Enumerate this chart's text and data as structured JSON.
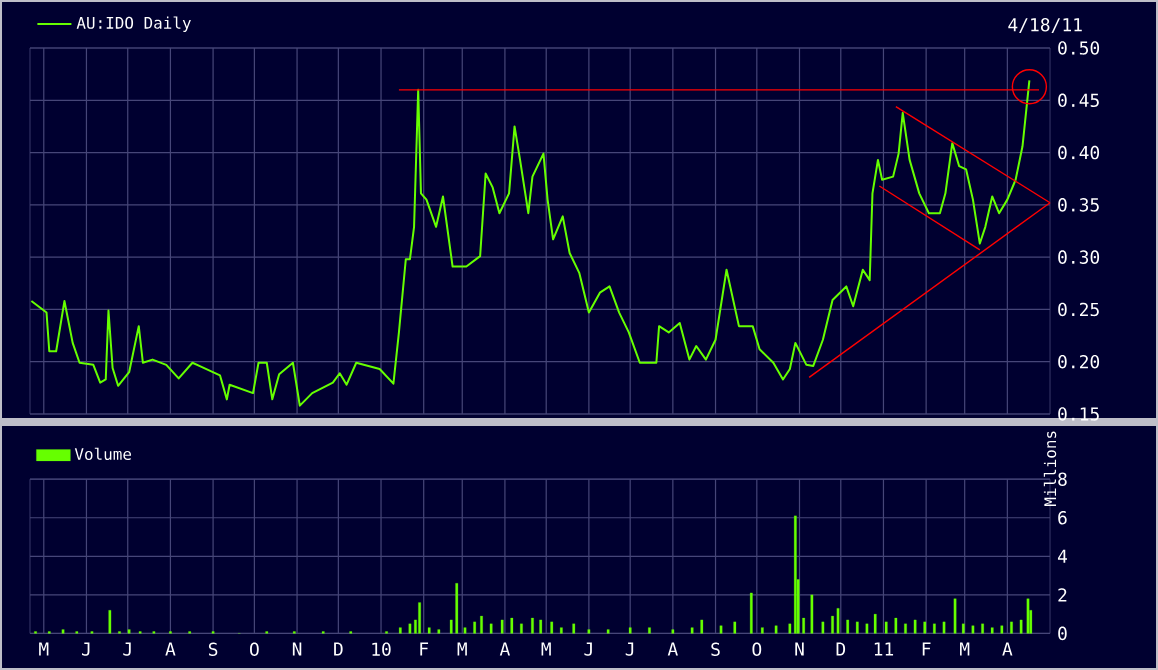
{
  "chart_data": [
    {
      "type": "line",
      "annotations": [
        "4/18/11"
      ],
      "legend": "top left",
      "grid": true,
      "tick_labels": "y",
      "line_style": "solid",
      "xlim": [
        "2009-04-21",
        "2011-05-02"
      ],
      "ylim": [
        0.15,
        0.5
      ],
      "xticks": [
        {
          "value": "2009-05-01",
          "label": null
        },
        {
          "value": "2009-06-01",
          "label": null
        },
        {
          "value": "2009-07-01",
          "label": null
        },
        {
          "value": "2009-08-01",
          "label": null
        },
        {
          "value": "2009-09-01",
          "label": null
        },
        {
          "value": "2009-10-01",
          "label": null
        },
        {
          "value": "2009-11-01",
          "label": null
        },
        {
          "value": "2009-12-01",
          "label": null
        },
        {
          "value": "2010-01-01",
          "label": null
        },
        {
          "value": "2010-02-01",
          "label": null
        },
        {
          "value": "2010-03-01",
          "label": null
        },
        {
          "value": "2010-04-01",
          "label": null
        },
        {
          "value": "2010-05-01",
          "label": null
        },
        {
          "value": "2010-06-01",
          "label": null
        },
        {
          "value": "2010-07-01",
          "label": null
        },
        {
          "value": "2010-08-01",
          "label": null
        },
        {
          "value": "2010-09-01",
          "label": null
        },
        {
          "value": "2010-10-01",
          "label": null
        },
        {
          "value": "2010-11-01",
          "label": null
        },
        {
          "value": "2010-12-01",
          "label": null
        },
        {
          "value": "2011-01-01",
          "label": null
        },
        {
          "value": "2011-02-01",
          "label": null
        },
        {
          "value": "2011-03-01",
          "label": null
        },
        {
          "value": "2011-04-01",
          "label": null
        }
      ],
      "yticks": [
        {
          "value": 0.15,
          "label": "0.15"
        },
        {
          "value": 0.2,
          "label": "0.20"
        },
        {
          "value": 0.25,
          "label": "0.25"
        },
        {
          "value": 0.3,
          "label": "0.30"
        },
        {
          "value": 0.35,
          "label": "0.35"
        },
        {
          "value": 0.4,
          "label": "0.40"
        },
        {
          "value": 0.45,
          "label": "0.45"
        },
        {
          "value": 0.5,
          "label": "0.50"
        }
      ],
      "series": [
        {
          "name": "AU:IDO Daily",
          "type": "line",
          "color": "#66ff00",
          "x": [
            "2009-04-22",
            "2009-05-03",
            "2009-05-05",
            "2009-05-10",
            "2009-05-16",
            "2009-05-22",
            "2009-05-27",
            "2009-06-06",
            "2009-06-11",
            "2009-06-15",
            "2009-06-17",
            "2009-06-20",
            "2009-06-24",
            "2009-07-02",
            "2009-07-09",
            "2009-07-12",
            "2009-07-19",
            "2009-07-29",
            "2009-08-07",
            "2009-08-17",
            "2009-08-22",
            "2009-09-06",
            "2009-09-11",
            "2009-09-13",
            "2009-09-30",
            "2009-10-04",
            "2009-10-10",
            "2009-10-14",
            "2009-10-19",
            "2009-10-29",
            "2009-11-03",
            "2009-11-12",
            "2009-11-27",
            "2009-12-02",
            "2009-12-07",
            "2009-12-14",
            "2009-12-31",
            "2010-01-10",
            "2010-01-14",
            "2010-01-19",
            "2010-01-22",
            "2010-01-25",
            "2010-01-28",
            "2010-01-30",
            "2010-02-03",
            "2010-02-10",
            "2010-02-15",
            "2010-02-22",
            "2010-03-04",
            "2010-03-14",
            "2010-03-18",
            "2010-03-23",
            "2010-03-28",
            "2010-04-04",
            "2010-04-08",
            "2010-04-12",
            "2010-04-18",
            "2010-04-21",
            "2010-04-29",
            "2010-05-02",
            "2010-05-06",
            "2010-05-13",
            "2010-05-18",
            "2010-05-25",
            "2010-06-01",
            "2010-06-09",
            "2010-06-16",
            "2010-06-23",
            "2010-06-30",
            "2010-07-08",
            "2010-07-20",
            "2010-07-22",
            "2010-07-29",
            "2010-08-06",
            "2010-08-13",
            "2010-08-18",
            "2010-08-25",
            "2010-09-01",
            "2010-09-09",
            "2010-09-18",
            "2010-09-28",
            "2010-10-03",
            "2010-10-13",
            "2010-10-20",
            "2010-10-25",
            "2010-10-29",
            "2010-11-06",
            "2010-11-11",
            "2010-11-18",
            "2010-11-25",
            "2010-12-05",
            "2010-12-10",
            "2010-12-17",
            "2010-12-22",
            "2010-12-24",
            "2010-12-28",
            "2010-12-31",
            "2011-01-08",
            "2011-01-12",
            "2011-01-15",
            "2011-01-20",
            "2011-01-27",
            "2011-02-03",
            "2011-02-11",
            "2011-02-15",
            "2011-02-20",
            "2011-02-25",
            "2011-03-02",
            "2011-03-07",
            "2011-03-12",
            "2011-03-16",
            "2011-03-21",
            "2011-03-26",
            "2011-04-01",
            "2011-04-07",
            "2011-04-12",
            "2011-04-17"
          ],
          "values": [
            0.258,
            0.247,
            0.21,
            0.21,
            0.258,
            0.218,
            0.199,
            0.197,
            0.18,
            0.183,
            0.249,
            0.194,
            0.177,
            0.19,
            0.234,
            0.199,
            0.202,
            0.197,
            0.184,
            0.199,
            0.196,
            0.187,
            0.164,
            0.178,
            0.17,
            0.199,
            0.199,
            0.164,
            0.188,
            0.199,
            0.158,
            0.17,
            0.18,
            0.189,
            0.178,
            0.199,
            0.193,
            0.179,
            0.228,
            0.298,
            0.298,
            0.329,
            0.46,
            0.361,
            0.355,
            0.329,
            0.358,
            0.291,
            0.291,
            0.301,
            0.38,
            0.367,
            0.342,
            0.361,
            0.425,
            0.393,
            0.342,
            0.377,
            0.399,
            0.355,
            0.317,
            0.339,
            0.304,
            0.285,
            0.247,
            0.266,
            0.272,
            0.247,
            0.228,
            0.199,
            0.199,
            0.234,
            0.228,
            0.237,
            0.202,
            0.215,
            0.202,
            0.221,
            0.288,
            0.234,
            0.234,
            0.212,
            0.199,
            0.183,
            0.193,
            0.218,
            0.197,
            0.196,
            0.221,
            0.259,
            0.272,
            0.253,
            0.288,
            0.278,
            0.361,
            0.393,
            0.374,
            0.377,
            0.399,
            0.438,
            0.393,
            0.361,
            0.342,
            0.342,
            0.361,
            0.409,
            0.387,
            0.384,
            0.355,
            0.313,
            0.329,
            0.358,
            0.342,
            0.355,
            0.374,
            0.406,
            0.469
          ]
        },
        {
          "type": "line",
          "color": "#ff0000",
          "x": [
            "2010-01-14",
            "2011-04-24"
          ],
          "values": [
            0.46,
            0.46
          ]
        },
        {
          "type": "line",
          "color": "#ff0000",
          "x": [
            "2011-01-10",
            "2011-05-02"
          ],
          "values": [
            0.444,
            0.352
          ]
        },
        {
          "type": "line",
          "color": "#ff0000",
          "x": [
            "2010-12-29",
            "2011-03-12"
          ],
          "values": [
            0.368,
            0.307
          ]
        },
        {
          "type": "line",
          "color": "#ff0000",
          "x": [
            "2010-11-08",
            "2011-05-02"
          ],
          "values": [
            0.185,
            0.352
          ]
        },
        {
          "type": "scatter",
          "marker": "circle",
          "color": "#ff0000",
          "x": [
            "2011-04-17"
          ],
          "values": [
            0.463
          ]
        }
      ]
    },
    {
      "type": "bar",
      "legend": "top left",
      "grid": true,
      "ylabel": "Millions",
      "xlim": [
        "2009-04-21",
        "2011-05-02"
      ],
      "ylim": [
        0,
        8
      ],
      "xticks": [
        {
          "value": "2009-05-01",
          "label": "M"
        },
        {
          "value": "2009-06-01",
          "label": "J"
        },
        {
          "value": "2009-07-01",
          "label": "J"
        },
        {
          "value": "2009-08-01",
          "label": "A"
        },
        {
          "value": "2009-09-01",
          "label": "S"
        },
        {
          "value": "2009-10-01",
          "label": "O"
        },
        {
          "value": "2009-11-01",
          "label": "N"
        },
        {
          "value": "2009-12-01",
          "label": "D"
        },
        {
          "value": "2010-01-01",
          "label": "10"
        },
        {
          "value": "2010-02-01",
          "label": "F"
        },
        {
          "value": "2010-03-01",
          "label": "M"
        },
        {
          "value": "2010-04-01",
          "label": "A"
        },
        {
          "value": "2010-05-01",
          "label": "M"
        },
        {
          "value": "2010-06-01",
          "label": "J"
        },
        {
          "value": "2010-07-01",
          "label": "J"
        },
        {
          "value": "2010-08-01",
          "label": "A"
        },
        {
          "value": "2010-09-01",
          "label": "S"
        },
        {
          "value": "2010-10-01",
          "label": "O"
        },
        {
          "value": "2010-11-01",
          "label": "N"
        },
        {
          "value": "2010-12-01",
          "label": "D"
        },
        {
          "value": "2011-01-01",
          "label": "11"
        },
        {
          "value": "2011-02-01",
          "label": "F"
        },
        {
          "value": "2011-03-01",
          "label": "M"
        },
        {
          "value": "2011-04-01",
          "label": "A"
        }
      ],
      "yticks": [
        0,
        2,
        4,
        6,
        8
      ],
      "series": [
        {
          "name": "Volume",
          "color": "#66ff00",
          "x": [
            "2009-04-25",
            "2009-05-05",
            "2009-05-15",
            "2009-05-25",
            "2009-06-05",
            "2009-06-18",
            "2009-06-25",
            "2009-07-02",
            "2009-07-10",
            "2009-07-20",
            "2009-08-01",
            "2009-08-15",
            "2009-09-01",
            "2009-09-20",
            "2009-10-10",
            "2009-10-30",
            "2009-11-20",
            "2009-12-10",
            "2010-01-05",
            "2010-01-15",
            "2010-01-22",
            "2010-01-26",
            "2010-01-29",
            "2010-02-05",
            "2010-02-12",
            "2010-02-21",
            "2010-02-25",
            "2010-03-03",
            "2010-03-10",
            "2010-03-15",
            "2010-03-22",
            "2010-03-30",
            "2010-04-06",
            "2010-04-13",
            "2010-04-21",
            "2010-04-27",
            "2010-05-05",
            "2010-05-12",
            "2010-05-21",
            "2010-06-01",
            "2010-06-15",
            "2010-07-01",
            "2010-07-15",
            "2010-08-01",
            "2010-08-15",
            "2010-08-22",
            "2010-09-05",
            "2010-09-15",
            "2010-09-27",
            "2010-10-05",
            "2010-10-15",
            "2010-10-25",
            "2010-10-29",
            "2010-10-31",
            "2010-11-04",
            "2010-11-10",
            "2010-11-18",
            "2010-11-25",
            "2010-11-29",
            "2010-12-06",
            "2010-12-13",
            "2010-12-20",
            "2010-12-26",
            "2011-01-03",
            "2011-01-10",
            "2011-01-17",
            "2011-01-24",
            "2011-01-31",
            "2011-02-07",
            "2011-02-14",
            "2011-02-22",
            "2011-02-28",
            "2011-03-07",
            "2011-03-14",
            "2011-03-21",
            "2011-03-28",
            "2011-04-04",
            "2011-04-11",
            "2011-04-16",
            "2011-04-18"
          ],
          "values": [
            0.1,
            0.1,
            0.2,
            0.1,
            0.1,
            1.2,
            0.1,
            0.2,
            0.1,
            0.1,
            0.1,
            0.1,
            0.1,
            0.0,
            0.1,
            0.1,
            0.1,
            0.1,
            0.1,
            0.3,
            0.5,
            0.7,
            1.6,
            0.3,
            0.2,
            0.7,
            2.6,
            0.3,
            0.6,
            0.9,
            0.5,
            0.7,
            0.8,
            0.5,
            0.8,
            0.7,
            0.6,
            0.3,
            0.5,
            0.2,
            0.2,
            0.3,
            0.3,
            0.2,
            0.3,
            0.7,
            0.4,
            0.6,
            2.1,
            0.3,
            0.4,
            0.5,
            6.1,
            2.8,
            0.8,
            2.0,
            0.6,
            0.9,
            1.3,
            0.7,
            0.6,
            0.5,
            1.0,
            0.6,
            0.8,
            0.5,
            0.7,
            0.6,
            0.5,
            0.6,
            1.8,
            0.5,
            0.4,
            0.5,
            0.3,
            0.4,
            0.6,
            0.7,
            1.8,
            1.2
          ]
        }
      ]
    }
  ]
}
